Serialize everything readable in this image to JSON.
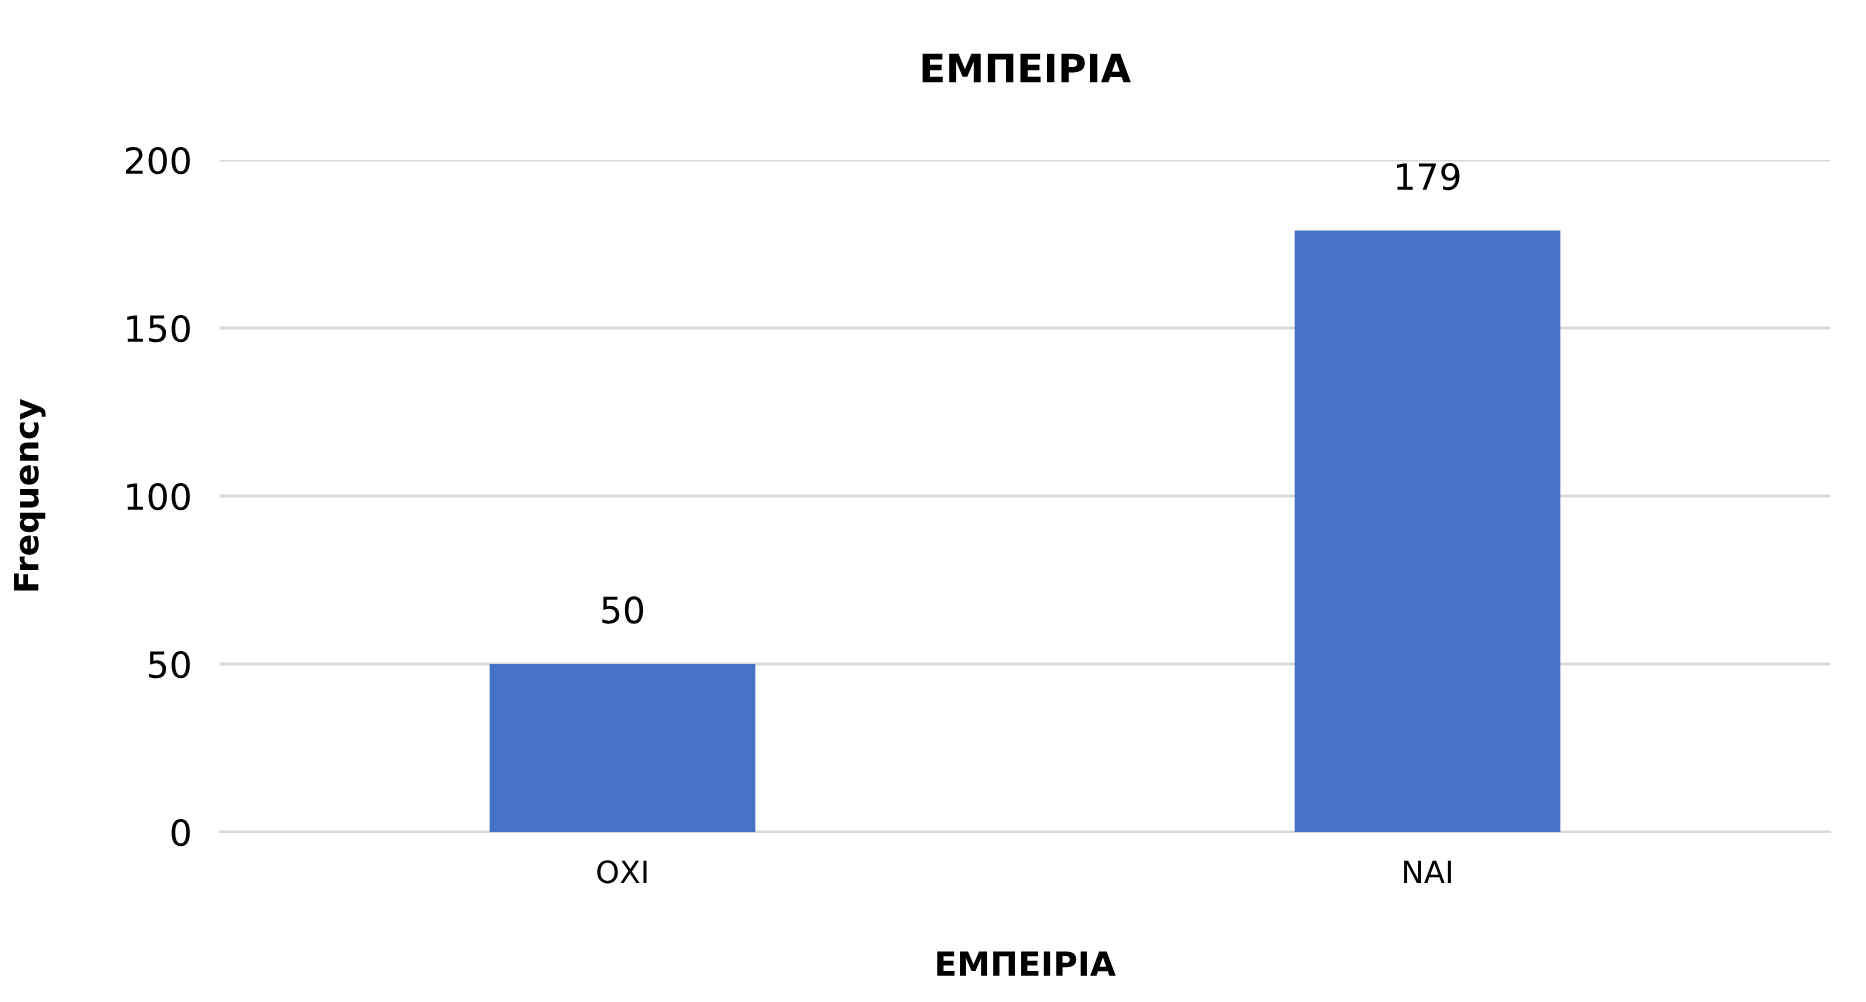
{
  "chart_data": {
    "type": "bar",
    "title": "ΕΜΠΕΙΡΙΑ",
    "xlabel": "ΕΜΠΕΙΡΙΑ",
    "ylabel": "Frequency",
    "categories": [
      "ΟΧΙ",
      "ΝΑΙ"
    ],
    "values": [
      50,
      179
    ],
    "color": "#4472c4",
    "ylim": [
      0,
      200
    ],
    "yticks": [
      0,
      50,
      100,
      150,
      200
    ],
    "grid": "y",
    "data_labels": true
  }
}
